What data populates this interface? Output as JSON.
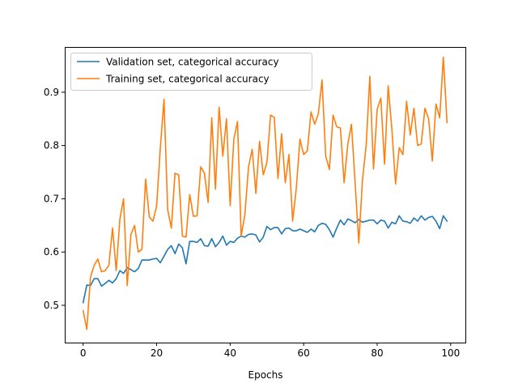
{
  "chart_data": {
    "type": "line",
    "title": "",
    "xlabel": "Epochs",
    "ylabel": "",
    "xlim": [
      -5,
      104
    ],
    "ylim": [
      0.43,
      0.985
    ],
    "xticks": [
      0,
      20,
      40,
      60,
      80,
      100
    ],
    "yticks": [
      0.5,
      0.6,
      0.7,
      0.8,
      0.9
    ],
    "xtick_labels": [
      "0",
      "20",
      "40",
      "60",
      "80",
      "100"
    ],
    "ytick_labels": [
      "0.5",
      "0.6",
      "0.7",
      "0.8",
      "0.9"
    ],
    "grid": false,
    "legend_position": "top-left",
    "x": [
      0,
      1,
      2,
      3,
      4,
      5,
      6,
      7,
      8,
      9,
      10,
      11,
      12,
      13,
      14,
      15,
      16,
      17,
      18,
      19,
      20,
      21,
      22,
      23,
      24,
      25,
      26,
      27,
      28,
      29,
      30,
      31,
      32,
      33,
      34,
      35,
      36,
      37,
      38,
      39,
      40,
      41,
      42,
      43,
      44,
      45,
      46,
      47,
      48,
      49,
      50,
      51,
      52,
      53,
      54,
      55,
      56,
      57,
      58,
      59,
      60,
      61,
      62,
      63,
      64,
      65,
      66,
      67,
      68,
      69,
      70,
      71,
      72,
      73,
      74,
      75,
      76,
      77,
      78,
      79,
      80,
      81,
      82,
      83,
      84,
      85,
      86,
      87,
      88,
      89,
      90,
      91,
      92,
      93,
      94,
      95,
      96,
      97,
      98,
      99
    ],
    "series": [
      {
        "name": "Validation set, categorical accuracy",
        "color": "#1f77b4",
        "values": [
          0.505,
          0.538,
          0.537,
          0.55,
          0.55,
          0.536,
          0.541,
          0.547,
          0.542,
          0.55,
          0.565,
          0.56,
          0.571,
          0.567,
          0.563,
          0.569,
          0.585,
          0.585,
          0.585,
          0.587,
          0.588,
          0.58,
          0.592,
          0.605,
          0.612,
          0.597,
          0.615,
          0.608,
          0.578,
          0.62,
          0.62,
          0.618,
          0.625,
          0.612,
          0.611,
          0.625,
          0.61,
          0.618,
          0.63,
          0.613,
          0.62,
          0.618,
          0.626,
          0.63,
          0.628,
          0.633,
          0.634,
          0.632,
          0.619,
          0.628,
          0.648,
          0.642,
          0.646,
          0.646,
          0.634,
          0.644,
          0.645,
          0.64,
          0.64,
          0.643,
          0.64,
          0.637,
          0.643,
          0.638,
          0.65,
          0.654,
          0.652,
          0.642,
          0.628,
          0.645,
          0.66,
          0.651,
          0.662,
          0.659,
          0.655,
          0.661,
          0.656,
          0.658,
          0.66,
          0.66,
          0.653,
          0.66,
          0.658,
          0.645,
          0.656,
          0.653,
          0.668,
          0.658,
          0.657,
          0.654,
          0.664,
          0.658,
          0.668,
          0.66,
          0.665,
          0.667,
          0.658,
          0.644,
          0.668,
          0.658
        ]
      },
      {
        "name": "Training set, categorical accuracy",
        "color": "#ff7f0e",
        "values": [
          0.49,
          0.455,
          0.553,
          0.575,
          0.587,
          0.563,
          0.565,
          0.575,
          0.645,
          0.565,
          0.662,
          0.7,
          0.537,
          0.633,
          0.65,
          0.6,
          0.605,
          0.737,
          0.666,
          0.658,
          0.687,
          0.795,
          0.887,
          0.68,
          0.645,
          0.748,
          0.745,
          0.63,
          0.628,
          0.708,
          0.667,
          0.668,
          0.76,
          0.748,
          0.693,
          0.852,
          0.718,
          0.872,
          0.78,
          0.85,
          0.687,
          0.812,
          0.845,
          0.63,
          0.67,
          0.76,
          0.793,
          0.71,
          0.808,
          0.745,
          0.768,
          0.857,
          0.853,
          0.738,
          0.822,
          0.73,
          0.783,
          0.658,
          0.72,
          0.812,
          0.783,
          0.79,
          0.863,
          0.84,
          0.86,
          0.923,
          0.78,
          0.755,
          0.857,
          0.835,
          0.833,
          0.73,
          0.802,
          0.84,
          0.73,
          0.617,
          0.735,
          0.8,
          0.93,
          0.756,
          0.868,
          0.889,
          0.765,
          0.912,
          0.83,
          0.728,
          0.796,
          0.783,
          0.883,
          0.82,
          0.87,
          0.8,
          0.803,
          0.87,
          0.85,
          0.771,
          0.878,
          0.852,
          0.966,
          0.843
        ]
      }
    ]
  }
}
